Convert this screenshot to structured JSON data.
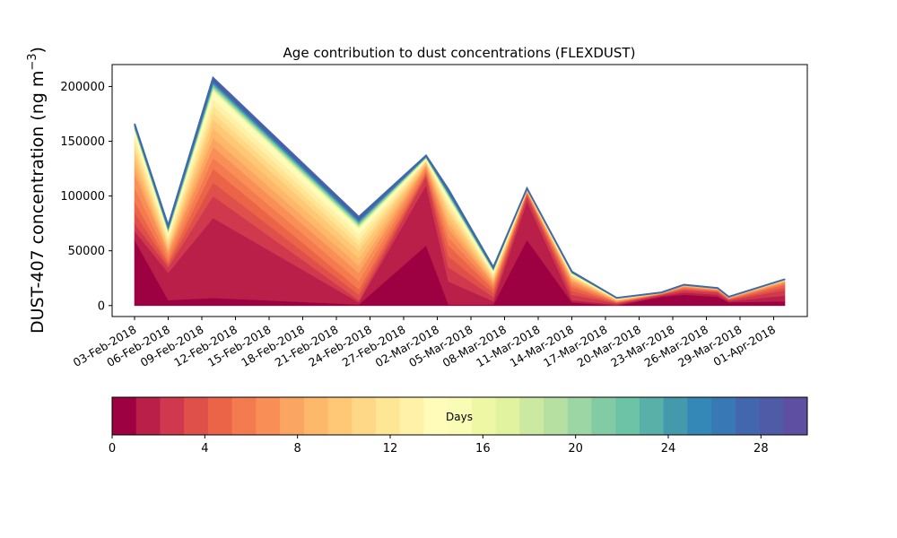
{
  "chart_data": {
    "type": "area",
    "stacked": true,
    "title": "Age contribution to dust concentrations (FLEXDUST)",
    "ylabel": "DUST-407 concentration (ng m",
    "ylabel_sup": "−3",
    "ylabel_close": ")",
    "xlabel": "",
    "ylim": [
      -10000,
      220000
    ],
    "xlim": [
      "2018-02-01",
      "2018-04-04"
    ],
    "y_ticks": [
      0,
      50000,
      100000,
      150000,
      200000
    ],
    "y_tick_labels": [
      "0",
      "50000",
      "100000",
      "150000",
      "200000"
    ],
    "x_ticks": [
      "2018-02-03",
      "2018-02-06",
      "2018-02-09",
      "2018-02-12",
      "2018-02-15",
      "2018-02-18",
      "2018-02-21",
      "2018-02-24",
      "2018-02-27",
      "2018-03-02",
      "2018-03-05",
      "2018-03-08",
      "2018-03-11",
      "2018-03-14",
      "2018-03-17",
      "2018-03-20",
      "2018-03-23",
      "2018-03-26",
      "2018-03-29",
      "2018-04-01"
    ],
    "x_tick_labels": [
      "03-Feb-2018",
      "06-Feb-2018",
      "09-Feb-2018",
      "12-Feb-2018",
      "15-Feb-2018",
      "18-Feb-2018",
      "21-Feb-2018",
      "24-Feb-2018",
      "27-Feb-2018",
      "02-Mar-2018",
      "05-Mar-2018",
      "08-Mar-2018",
      "11-Mar-2018",
      "14-Mar-2018",
      "17-Mar-2018",
      "20-Mar-2018",
      "23-Mar-2018",
      "26-Mar-2018",
      "29-Mar-2018",
      "01-Apr-2018"
    ],
    "x": [
      "2018-02-03",
      "2018-02-06",
      "2018-02-10",
      "2018-02-23",
      "2018-03-01",
      "2018-03-03",
      "2018-03-07",
      "2018-03-10",
      "2018-03-14",
      "2018-03-18",
      "2018-03-22",
      "2018-03-24",
      "2018-03-27",
      "2018-03-28",
      "2018-04-02"
    ],
    "total": [
      166000,
      73000,
      208000,
      81000,
      137000,
      106000,
      35000,
      107000,
      31000,
      7000,
      12000,
      19000,
      16000,
      8000,
      24000
    ],
    "age_cumulative": {
      "days": [
        1,
        2,
        3,
        5,
        7,
        10,
        14
      ],
      "values": [
        [
          60000,
          5000,
          7000,
          1000,
          55000,
          1000,
          1000,
          60000,
          3000,
          0,
          8000,
          10000,
          8000,
          3000,
          4000
        ],
        [
          68000,
          30000,
          80000,
          3000,
          110000,
          22000,
          4000,
          95000,
          5000,
          1000,
          9000,
          12000,
          10000,
          4000,
          9000
        ],
        [
          75000,
          35000,
          100000,
          5000,
          118000,
          35000,
          8000,
          100000,
          10000,
          2000,
          10000,
          14000,
          12000,
          5000,
          14000
        ],
        [
          95000,
          40000,
          125000,
          15000,
          122000,
          55000,
          15000,
          103000,
          17000,
          3000,
          10500,
          16000,
          13500,
          6000,
          19000
        ],
        [
          120000,
          48000,
          145000,
          30000,
          127000,
          70000,
          20000,
          104000,
          22000,
          4000,
          11000,
          17500,
          14500,
          6800,
          21500
        ],
        [
          140000,
          55000,
          170000,
          50000,
          131000,
          85000,
          25000,
          105500,
          26000,
          5500,
          11500,
          18500,
          15300,
          7400,
          23000
        ],
        [
          160000,
          66000,
          195000,
          70000,
          134000,
          98000,
          31000,
          106500,
          29000,
          6500,
          11800,
          18900,
          15800,
          7800,
          23700
        ]
      ]
    },
    "colorbar": {
      "label": "Days",
      "range": [
        0,
        30
      ],
      "ticks": [
        0,
        4,
        8,
        12,
        16,
        20,
        24,
        28
      ],
      "tick_labels": [
        "0",
        "4",
        "8",
        "12",
        "16",
        "20",
        "24",
        "28"
      ],
      "colors": [
        "#9e0142",
        "#b91f48",
        "#d0384e",
        "#e0504a",
        "#eb6448",
        "#f47b4f",
        "#f98f56",
        "#fba563",
        "#fdb86a",
        "#fec877",
        "#fed887",
        "#fee695",
        "#fff1a8",
        "#fffbb8",
        "#f8fcb4",
        "#eef8a4",
        "#e1f39e",
        "#cbe9a0",
        "#b5e0a2",
        "#9cd6a4",
        "#83cba4",
        "#6cc3a5",
        "#58b0a8",
        "#449aac",
        "#3388b8",
        "#3879b5",
        "#4367af",
        "#505ba8",
        "#5e4fa2"
      ]
    },
    "total_line_color": "#4169a8"
  }
}
